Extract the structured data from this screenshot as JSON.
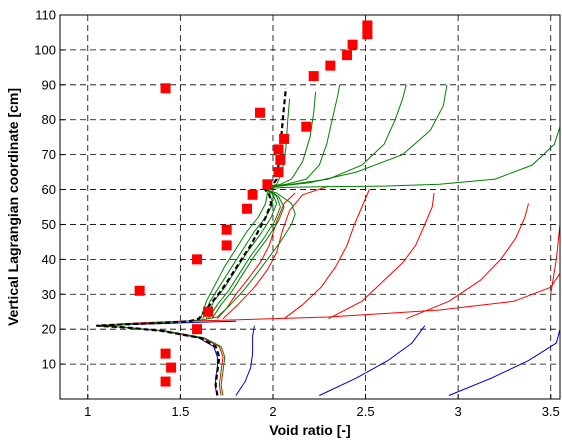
{
  "chart_data": {
    "type": "line",
    "title": "",
    "xlabel": "Void ratio [-]",
    "ylabel": "Vertical Lagrangian coordinate [cm]",
    "xlim": [
      0.85,
      3.55
    ],
    "ylim": [
      0,
      110
    ],
    "xticks": [
      1,
      1.5,
      2,
      2.5,
      3,
      3.5
    ],
    "xtick_labels": [
      "1",
      "1.5",
      "2",
      "2.5",
      "3",
      "3.5"
    ],
    "yticks": [
      10,
      20,
      30,
      40,
      50,
      60,
      70,
      80,
      90,
      100,
      110
    ],
    "ytick_labels": [
      "10",
      "20",
      "30",
      "40",
      "50",
      "60",
      "70",
      "80",
      "90",
      "100",
      "110"
    ],
    "grid": true,
    "grid_style": "dashed",
    "colors": {
      "blue": "#0000cc",
      "red": "#ff0000",
      "green": "#008000",
      "black": "#000000",
      "marker": "#ff0000"
    },
    "series": [
      {
        "color": "blue",
        "style": "solid",
        "points": [
          [
            1.7,
            1
          ],
          [
            1.69,
            3
          ],
          [
            1.69,
            6
          ],
          [
            1.7,
            9
          ],
          [
            1.7,
            12
          ],
          [
            1.68,
            15
          ],
          [
            1.6,
            17.5
          ],
          [
            1.4,
            19.5
          ],
          [
            1.2,
            20.5
          ],
          [
            1.05,
            21
          ],
          [
            1.2,
            21.3
          ],
          [
            1.4,
            21.6
          ],
          [
            1.6,
            22
          ],
          [
            1.8,
            22.3
          ]
        ]
      },
      {
        "color": "blue",
        "style": "solid",
        "points": [
          [
            1.8,
            1
          ],
          [
            1.85,
            5
          ],
          [
            1.88,
            9
          ],
          [
            1.89,
            13
          ],
          [
            1.89,
            18
          ],
          [
            1.9,
            21
          ]
        ]
      },
      {
        "color": "blue",
        "style": "solid",
        "points": [
          [
            2.25,
            1
          ],
          [
            2.45,
            6
          ],
          [
            2.62,
            11
          ],
          [
            2.75,
            16
          ],
          [
            2.82,
            21
          ]
        ]
      },
      {
        "color": "blue",
        "style": "solid",
        "points": [
          [
            2.95,
            1
          ],
          [
            3.18,
            6
          ],
          [
            3.38,
            11
          ],
          [
            3.53,
            16
          ],
          [
            3.55,
            20
          ]
        ]
      },
      {
        "color": "red",
        "style": "solid",
        "points": [
          [
            1.72,
            1
          ],
          [
            1.71,
            4
          ],
          [
            1.72,
            8
          ],
          [
            1.73,
            12
          ],
          [
            1.71,
            15
          ],
          [
            1.62,
            17.5
          ],
          [
            1.4,
            19.5
          ],
          [
            1.2,
            20.5
          ],
          [
            1.05,
            21
          ],
          [
            1.2,
            21.6
          ],
          [
            1.45,
            22.2
          ],
          [
            1.75,
            22.6
          ],
          [
            2.3,
            23.5
          ],
          [
            2.9,
            25.5
          ],
          [
            3.3,
            28
          ],
          [
            3.5,
            32
          ],
          [
            3.55,
            36
          ]
        ]
      },
      {
        "color": "red",
        "style": "solid",
        "points": [
          [
            1.7,
            23
          ],
          [
            1.75,
            26
          ],
          [
            1.8,
            30
          ],
          [
            1.86,
            34
          ],
          [
            1.93,
            39
          ],
          [
            1.98,
            44
          ],
          [
            2.02,
            51
          ],
          [
            2.06,
            56
          ],
          [
            2.12,
            59
          ]
        ]
      },
      {
        "color": "red",
        "style": "solid",
        "points": [
          [
            1.73,
            23
          ],
          [
            1.81,
            27
          ],
          [
            1.9,
            32
          ],
          [
            1.97,
            37
          ],
          [
            2.02,
            42
          ],
          [
            2.05,
            48
          ],
          [
            2.09,
            54
          ],
          [
            2.16,
            58.5
          ],
          [
            2.3,
            61
          ]
        ]
      },
      {
        "color": "red",
        "style": "solid",
        "points": [
          [
            2.06,
            23
          ],
          [
            2.16,
            27
          ],
          [
            2.26,
            32
          ],
          [
            2.34,
            38
          ],
          [
            2.4,
            44
          ],
          [
            2.44,
            50
          ],
          [
            2.48,
            55
          ],
          [
            2.52,
            60
          ]
        ]
      },
      {
        "color": "red",
        "style": "solid",
        "points": [
          [
            2.3,
            23
          ],
          [
            2.48,
            28
          ],
          [
            2.6,
            34
          ],
          [
            2.7,
            39
          ],
          [
            2.77,
            44
          ],
          [
            2.82,
            50
          ],
          [
            2.86,
            55
          ],
          [
            2.87,
            59
          ]
        ]
      },
      {
        "color": "red",
        "style": "solid",
        "points": [
          [
            2.72,
            23
          ],
          [
            2.95,
            28
          ],
          [
            3.12,
            34
          ],
          [
            3.23,
            40
          ],
          [
            3.31,
            46
          ],
          [
            3.36,
            52
          ],
          [
            3.38,
            56
          ]
        ]
      },
      {
        "color": "red",
        "style": "solid",
        "points": [
          [
            3.5,
            30
          ],
          [
            3.53,
            40
          ],
          [
            3.55,
            50
          ],
          [
            3.55,
            58
          ]
        ]
      },
      {
        "color": "green",
        "style": "solid",
        "points": [
          [
            1.73,
            1
          ],
          [
            1.72,
            4
          ],
          [
            1.73,
            8
          ],
          [
            1.74,
            12
          ],
          [
            1.72,
            15
          ],
          [
            1.63,
            17.5
          ],
          [
            1.42,
            19.5
          ],
          [
            1.2,
            20.5
          ],
          [
            1.05,
            21
          ],
          [
            1.25,
            21.5
          ],
          [
            1.5,
            22.2
          ],
          [
            1.62,
            22.7
          ],
          [
            1.7,
            23.5
          ],
          [
            1.77,
            27
          ],
          [
            1.84,
            31
          ],
          [
            1.9,
            35
          ],
          [
            1.97,
            40
          ],
          [
            2.04,
            45
          ],
          [
            2.1,
            50
          ],
          [
            2.12,
            53
          ],
          [
            2.1,
            56
          ],
          [
            2.02,
            59
          ],
          [
            1.95,
            60.2
          ],
          [
            2.05,
            60.6
          ],
          [
            2.25,
            60.8
          ],
          [
            2.6,
            61
          ],
          [
            2.9,
            61.5
          ],
          [
            3.2,
            63
          ],
          [
            3.4,
            67
          ],
          [
            3.52,
            73
          ],
          [
            3.55,
            78
          ]
        ]
      },
      {
        "color": "green",
        "style": "solid",
        "points": [
          [
            1.67,
            23
          ],
          [
            1.72,
            27
          ],
          [
            1.78,
            31
          ],
          [
            1.84,
            36
          ],
          [
            1.9,
            41
          ],
          [
            1.97,
            46
          ],
          [
            2.03,
            51
          ],
          [
            2.06,
            55
          ],
          [
            2.03,
            58
          ],
          [
            1.96,
            60.5
          ],
          [
            2.07,
            61.5
          ],
          [
            2.18,
            63
          ],
          [
            2.25,
            67
          ],
          [
            2.29,
            73
          ],
          [
            2.32,
            80
          ],
          [
            2.35,
            87
          ],
          [
            2.36,
            90
          ]
        ]
      },
      {
        "color": "green",
        "style": "solid",
        "points": [
          [
            1.65,
            23
          ],
          [
            1.7,
            27
          ],
          [
            1.76,
            31
          ],
          [
            1.82,
            36
          ],
          [
            1.88,
            41
          ],
          [
            1.95,
            46
          ],
          [
            2.01,
            51
          ],
          [
            2.04,
            55
          ],
          [
            2.02,
            58
          ],
          [
            1.96,
            60.5
          ],
          [
            2.1,
            61.5
          ],
          [
            2.3,
            63
          ],
          [
            2.48,
            67
          ],
          [
            2.6,
            73
          ],
          [
            2.66,
            80
          ],
          [
            2.7,
            86
          ],
          [
            2.72,
            90
          ]
        ]
      },
      {
        "color": "green",
        "style": "solid",
        "points": [
          [
            1.64,
            23
          ],
          [
            1.68,
            28
          ],
          [
            1.74,
            32
          ],
          [
            1.8,
            37
          ],
          [
            1.86,
            42
          ],
          [
            1.93,
            47
          ],
          [
            1.99,
            52
          ],
          [
            2.02,
            56
          ],
          [
            2,
            58.5
          ],
          [
            1.96,
            60.5
          ],
          [
            2.2,
            62
          ],
          [
            2.45,
            65
          ],
          [
            2.7,
            70
          ],
          [
            2.85,
            77
          ],
          [
            2.92,
            84
          ],
          [
            2.94,
            90
          ]
        ]
      },
      {
        "color": "green",
        "style": "solid",
        "points": [
          [
            1.62,
            23
          ],
          [
            1.66,
            28
          ],
          [
            1.72,
            33
          ],
          [
            1.78,
            38
          ],
          [
            1.84,
            43
          ],
          [
            1.9,
            48
          ],
          [
            1.96,
            52
          ],
          [
            2,
            56
          ],
          [
            1.98,
            59
          ],
          [
            1.96,
            60.5
          ],
          [
            2.04,
            61.5
          ],
          [
            2.1,
            63
          ],
          [
            2.16,
            68
          ],
          [
            2.2,
            75
          ],
          [
            2.22,
            82
          ],
          [
            2.23,
            88
          ]
        ]
      },
      {
        "color": "green",
        "style": "solid",
        "points": [
          [
            1.61,
            23
          ],
          [
            1.64,
            28
          ],
          [
            1.69,
            33
          ],
          [
            1.74,
            38
          ],
          [
            1.8,
            43
          ],
          [
            1.86,
            48
          ],
          [
            1.92,
            52
          ],
          [
            1.96,
            56
          ],
          [
            1.97,
            59
          ],
          [
            1.96,
            60.5
          ],
          [
            2.02,
            61.5
          ],
          [
            2.05,
            65
          ],
          [
            2.07,
            72
          ],
          [
            2.08,
            80
          ],
          [
            2.09,
            86
          ]
        ]
      },
      {
        "color": "black",
        "style": "dashed",
        "points": [
          [
            1.7,
            1
          ],
          [
            1.69,
            4
          ],
          [
            1.7,
            8
          ],
          [
            1.71,
            12
          ],
          [
            1.69,
            15
          ],
          [
            1.61,
            17.5
          ],
          [
            1.4,
            19.5
          ],
          [
            1.2,
            20.5
          ],
          [
            1.05,
            21
          ],
          [
            1.2,
            21.4
          ],
          [
            1.45,
            21.9
          ],
          [
            1.55,
            22.3
          ],
          [
            1.6,
            23
          ],
          [
            1.66,
            27
          ],
          [
            1.72,
            31
          ],
          [
            1.77,
            35
          ],
          [
            1.83,
            40
          ],
          [
            1.88,
            44
          ],
          [
            1.92,
            48
          ],
          [
            1.96,
            52
          ],
          [
            1.99,
            56
          ],
          [
            1.98,
            58.5
          ],
          [
            1.95,
            60.5
          ],
          [
            2,
            61.5
          ],
          [
            2.02,
            63
          ],
          [
            2.03,
            67
          ],
          [
            2.04,
            72
          ],
          [
            2.05,
            78
          ],
          [
            2.06,
            84
          ],
          [
            2.07,
            89
          ]
        ]
      }
    ],
    "markers": [
      [
        1.42,
        5
      ],
      [
        1.45,
        9
      ],
      [
        1.42,
        13
      ],
      [
        1.59,
        20
      ],
      [
        1.65,
        25
      ],
      [
        1.28,
        31
      ],
      [
        1.59,
        40
      ],
      [
        1.75,
        44
      ],
      [
        1.75,
        48.5
      ],
      [
        1.86,
        54.5
      ],
      [
        1.89,
        58.5
      ],
      [
        1.97,
        61.5
      ],
      [
        2.03,
        65
      ],
      [
        2.04,
        68.5
      ],
      [
        2.03,
        71.5
      ],
      [
        2.06,
        74.5
      ],
      [
        2.18,
        78
      ],
      [
        1.93,
        82
      ],
      [
        1.42,
        89
      ],
      [
        2.22,
        92.5
      ],
      [
        2.31,
        95.5
      ],
      [
        2.4,
        98.5
      ],
      [
        2.43,
        101.5
      ],
      [
        2.51,
        104.5
      ],
      [
        2.51,
        107
      ]
    ]
  }
}
